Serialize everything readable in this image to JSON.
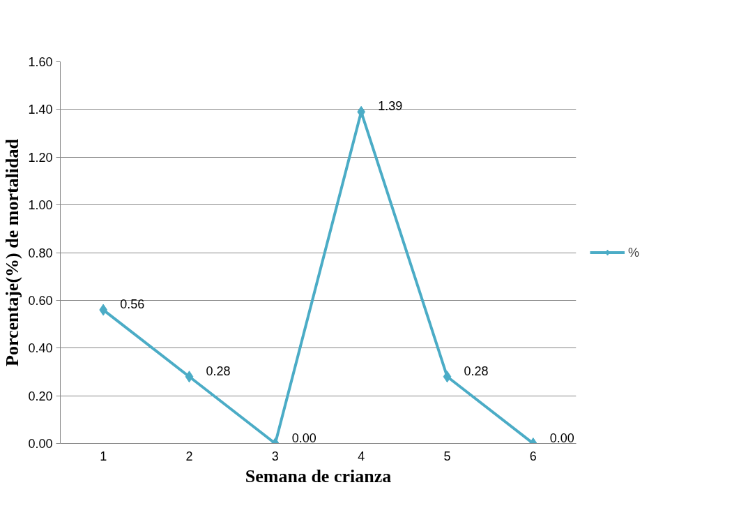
{
  "chart_data": {
    "type": "line",
    "xlabel": "Semana de crianza",
    "ylabel": "Porcentaje(%) de mortalidad",
    "categories": [
      "1",
      "2",
      "3",
      "4",
      "5",
      "6"
    ],
    "series": [
      {
        "name": "%",
        "color": "#4bacc6",
        "values": [
          0.56,
          0.28,
          0.0,
          1.39,
          0.28,
          0.0
        ],
        "value_labels": [
          "0.56",
          "0.28",
          "0.00",
          "1.39",
          "0.28",
          "0.00"
        ]
      }
    ],
    "ylim": [
      0,
      1.6
    ],
    "yticks": [
      {
        "value": 0,
        "label": "0.00"
      },
      {
        "value": 0.2,
        "label": "0.20"
      },
      {
        "value": 0.4,
        "label": "0.40"
      },
      {
        "value": 0.6,
        "label": "0.60"
      },
      {
        "value": 0.8,
        "label": "0.80"
      },
      {
        "value": 1.0,
        "label": "1.00"
      },
      {
        "value": 1.2,
        "label": "1.20"
      },
      {
        "value": 1.4,
        "label": "1.40"
      },
      {
        "value": 1.6,
        "label": "1.60"
      }
    ],
    "grid": "y",
    "legend": "right",
    "marker": "diamond",
    "line_style": "solid"
  }
}
